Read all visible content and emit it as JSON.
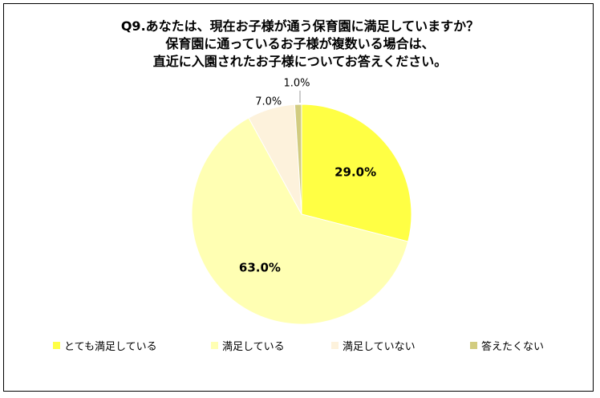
{
  "chart_data": {
    "type": "pie",
    "title": [
      "Q9.あなたは、現在お子様が通う保育園に満足していますか？",
      "保育園に通っているお子様が複数いる場合は、",
      "直近に入園されたお子様についてお答えください。"
    ],
    "slices": [
      {
        "label": "とても満足している",
        "value": 29.0,
        "display": "29.0%",
        "color": "#ffff44"
      },
      {
        "label": "満足している",
        "value": 63.0,
        "display": "63.0%",
        "color": "#ffffb3"
      },
      {
        "label": "満足していない",
        "value": 7.0,
        "display": "7.0%",
        "color": "#fdf2dc"
      },
      {
        "label": "答えたくない",
        "value": 1.0,
        "display": "1.0%",
        "color": "#d2cc80"
      }
    ],
    "legend_position": "bottom"
  }
}
